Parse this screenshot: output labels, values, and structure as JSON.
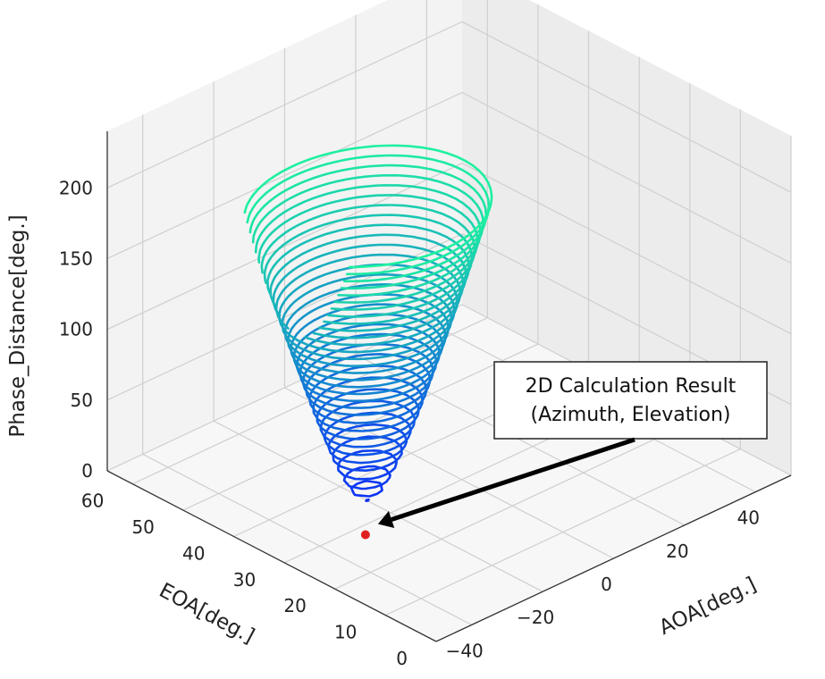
{
  "chart_data": {
    "type": "contour3d",
    "title": "",
    "xlabel": "AOA[deg.]",
    "ylabel": "EOA[deg.]",
    "zlabel": "Phase_Distance[deg.]",
    "xlim": [
      -50,
      50
    ],
    "ylim": [
      0,
      65
    ],
    "zlim": [
      0,
      240
    ],
    "x_ticks": [
      "−40",
      "−20",
      "0",
      "20",
      "40"
    ],
    "y_ticks": [
      "0",
      "10",
      "20",
      "30",
      "40",
      "50",
      "60"
    ],
    "z_ticks": [
      "0",
      "50",
      "100",
      "150",
      "200"
    ],
    "contour_levels": [
      4,
      10,
      17,
      25,
      33,
      41,
      50,
      58,
      65,
      72,
      79,
      86,
      93,
      100,
      107,
      113,
      119,
      125,
      131,
      137,
      143,
      149,
      155,
      161,
      167,
      173,
      179,
      185,
      191,
      197,
      203,
      209,
      215,
      221,
      227,
      233
    ],
    "colormap": "winter",
    "color_low": "#0a1cff",
    "color_high": "#1ef0a0",
    "minimum_point": {
      "aoa": -30,
      "eoa": 28,
      "phase_distance": 0,
      "color": "#e02020"
    },
    "grid": true,
    "annotation": {
      "line1": "2D Calculation Result",
      "line2": "(Azimuth, Elevation)"
    }
  }
}
